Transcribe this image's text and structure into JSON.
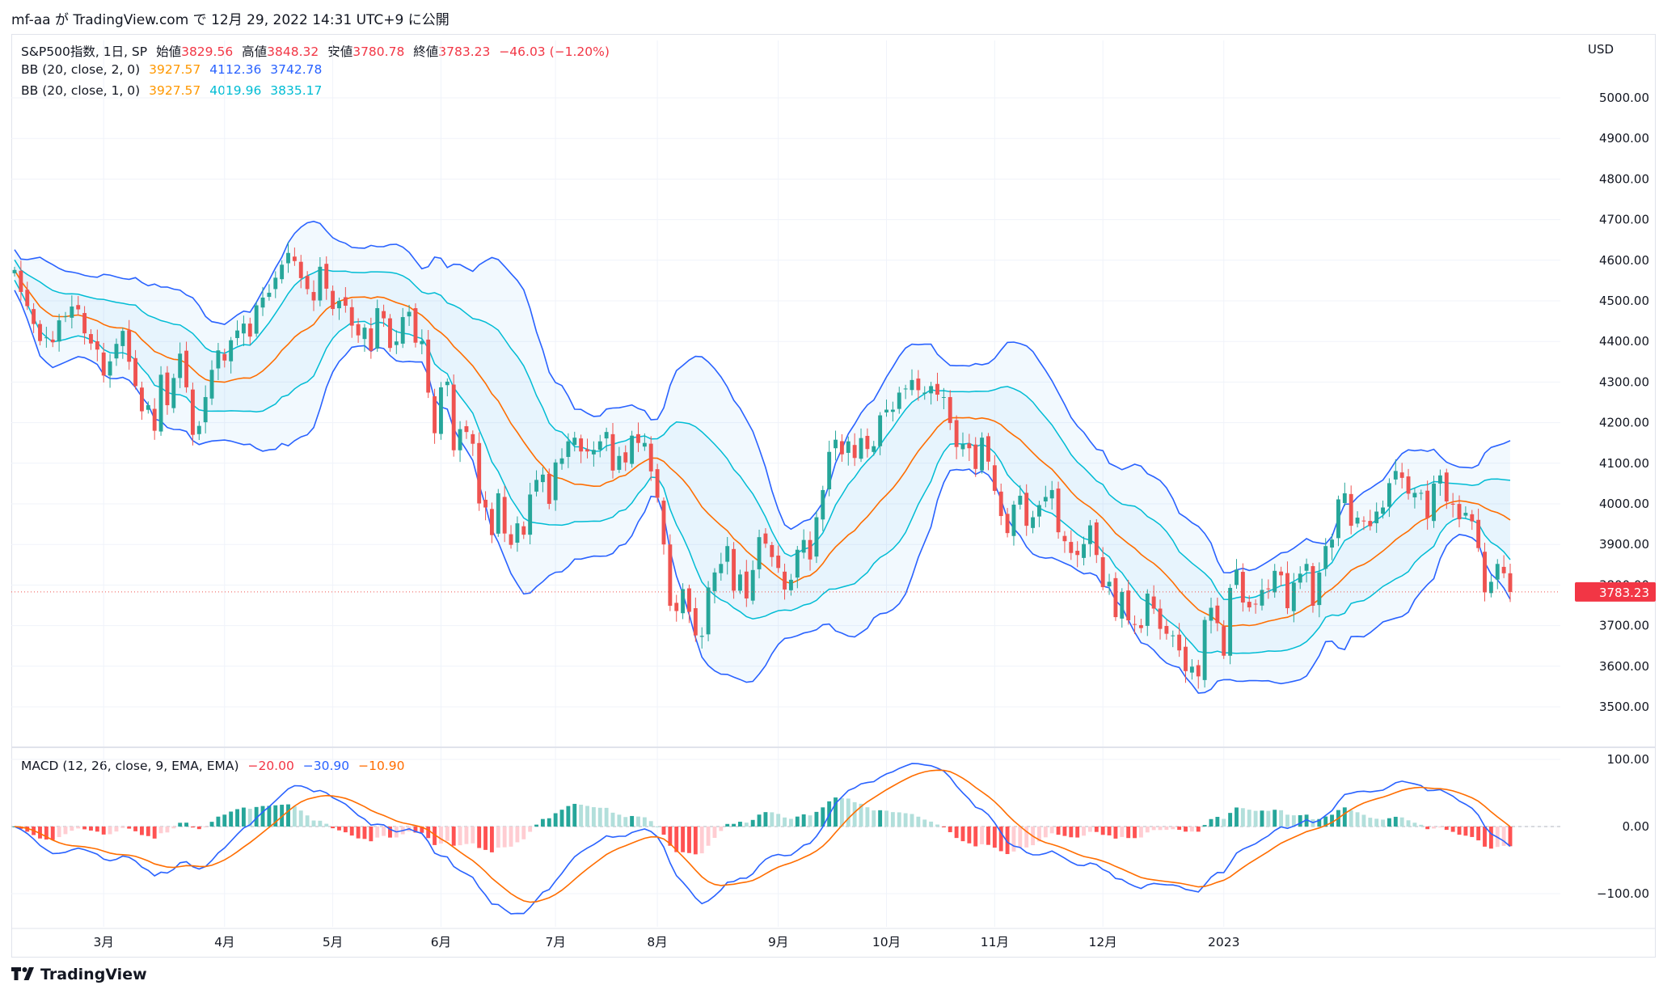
{
  "header": {
    "text": "mf-aa が TradingView.com で 12月 29, 2022 14:31 UTC+9 に公開"
  },
  "legend": {
    "main": {
      "title": "S&P500指数, 1日, SP",
      "open_label": "始値",
      "open": "3829.56",
      "high_label": "高値",
      "high": "3848.32",
      "low_label": "安値",
      "low": "3780.78",
      "close_label": "終値",
      "close": "3783.23",
      "change": "−46.03 (−1.20%)"
    },
    "bb2": {
      "label": "BB (20, close, 2, 0)",
      "basis": "3927.57",
      "upper": "4112.36",
      "lower": "3742.78"
    },
    "bb1": {
      "label": "BB (20, close, 1, 0)",
      "basis": "3927.57",
      "upper": "4019.96",
      "lower": "3835.17"
    },
    "macd": {
      "label": "MACD (12, 26, close, 9, EMA, EMA)",
      "hist": "−20.00",
      "macd": "−30.90",
      "signal": "−10.90"
    }
  },
  "price_axis": {
    "currency": "USD",
    "ticks": [
      "5000.00",
      "4900.00",
      "4800.00",
      "4700.00",
      "4600.00",
      "4500.00",
      "4400.00",
      "4300.00",
      "4200.00",
      "4100.00",
      "4000.00",
      "3900.00",
      "3800.00",
      "3700.00",
      "3600.00",
      "3500.00"
    ],
    "last_price_label": "3783.23"
  },
  "macd_axis": {
    "ticks": [
      "100.00",
      "0.00",
      "−100.00"
    ]
  },
  "time_axis": {
    "labels": [
      "3月",
      "4月",
      "5月",
      "6月",
      "7月",
      "8月",
      "9月",
      "10月",
      "11月",
      "12月",
      "2023"
    ]
  },
  "footer": {
    "brand": "TradingView",
    "logo_icon": "tradingview-logo-icon"
  },
  "colors": {
    "up": "#26a69a",
    "down": "#ef5350",
    "bb2": "#2962ff",
    "bb1": "#00bcd4",
    "basis": "#ff6d00",
    "macd_line": "#2962ff",
    "signal_line": "#ff6d00"
  },
  "chart_data": [
    {
      "type": "candlestick",
      "title": "S&P500指数, 1日, SP",
      "ylim": [
        3470,
        5030
      ],
      "x_labels": [
        "3月",
        "4月",
        "5月",
        "6月",
        "7月",
        "8月",
        "9月",
        "10月",
        "11月",
        "12月",
        "2023"
      ],
      "closes": [
        4576,
        4522,
        4487,
        4443,
        4401,
        4410,
        4398,
        4452,
        4462,
        4486,
        4479,
        4420,
        4395,
        4380,
        4316,
        4351,
        4394,
        4426,
        4350,
        4290,
        4228,
        4243,
        4180,
        4318,
        4243,
        4310,
        4370,
        4287,
        4170,
        4192,
        4263,
        4330,
        4378,
        4353,
        4403,
        4427,
        4444,
        4412,
        4489,
        4508,
        4520,
        4557,
        4589,
        4618,
        4598,
        4556,
        4529,
        4501,
        4584,
        4530,
        4480,
        4500,
        4488,
        4439,
        4415,
        4434,
        4377,
        4482,
        4457,
        4384,
        4400,
        4460,
        4473,
        4397,
        4401,
        4274,
        4174,
        4287,
        4301,
        4132,
        4184,
        4177,
        4148,
        4001,
        3991,
        3923,
        4026,
        3927,
        3899,
        3952,
        3924,
        4023,
        4059,
        4072,
        4000,
        4102,
        4112,
        4154,
        4163,
        4129,
        4129,
        4133,
        4154,
        4177,
        4082,
        4118,
        4102,
        4168,
        4150,
        4150,
        4080,
        4015,
        3900,
        3749,
        3736,
        3790,
        3734,
        3676,
        3675,
        3794,
        3831,
        3852,
        3896,
        3786,
        3826,
        3767,
        3837,
        3918,
        3902,
        3869,
        3842,
        3789,
        3813,
        3887,
        3911,
        3863,
        3967,
        4034,
        4128,
        4158,
        4122,
        4154,
        4113,
        4162,
        4135,
        4142,
        4218,
        4232,
        4232,
        4274,
        4284,
        4305,
        4280,
        4274,
        4290,
        4269,
        4263,
        4199,
        4140,
        4147,
        4137,
        4086,
        4163,
        4104,
        4032,
        3970,
        3928,
        3998,
        4020,
        3946,
        3967,
        3997,
        4017,
        4034,
        3930,
        3908,
        3879,
        3874,
        3901,
        3947,
        3874,
        3795,
        3808,
        3721,
        3783,
        3713,
        3703,
        3694,
        3779,
        3742,
        3692,
        3680,
        3676,
        3639,
        3588,
        3599,
        3575,
        3714,
        3744,
        3706,
        3626,
        3793,
        3838,
        3757,
        3745,
        3753,
        3788,
        3791,
        3835,
        3824,
        3743,
        3806,
        3828,
        3852,
        3749,
        3831,
        3896,
        3912,
        4011,
        4026,
        3946,
        3966,
        3958,
        3945,
        3981,
        3991,
        4051,
        4081,
        4064,
        4025,
        4027,
        4027,
        3965,
        4050,
        4070,
        4006,
        3998,
        3962,
        3978,
        3957,
        3891,
        3782,
        3808,
        3852,
        3829,
        3783
      ],
      "bb": {
        "length": 20,
        "mult": [
          2,
          1
        ],
        "last_basis": 3927.57,
        "last_upper2": 4112.36,
        "last_lower2": 3742.78,
        "last_upper1": 4019.96,
        "last_lower1": 3835.17
      }
    },
    {
      "type": "macd",
      "title": "MACD (12, 26, close, 9, EMA, EMA)",
      "ylim": [
        -150,
        110
      ],
      "last": {
        "histogram": -20.0,
        "macd": -30.9,
        "signal": -10.9
      }
    }
  ]
}
